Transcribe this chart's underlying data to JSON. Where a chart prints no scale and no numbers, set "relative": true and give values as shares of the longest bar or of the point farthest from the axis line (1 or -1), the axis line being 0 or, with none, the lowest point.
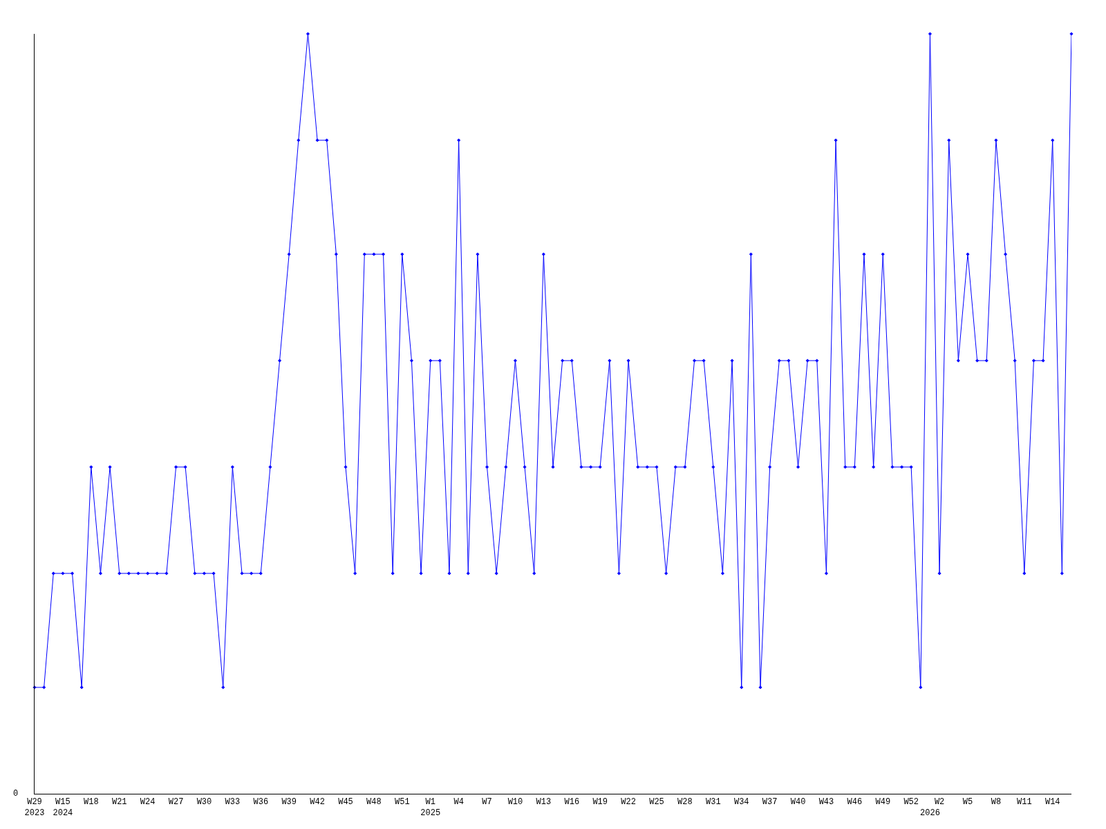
{
  "chart_data": {
    "type": "line",
    "relative": true,
    "marker": "diamond",
    "categories": [
      "W29\n2023",
      null,
      null,
      "W15\n2024",
      null,
      null,
      "W18",
      null,
      null,
      "W21",
      null,
      null,
      "W24",
      null,
      null,
      "W27",
      null,
      null,
      "W30",
      null,
      null,
      "W33",
      null,
      null,
      "W36",
      null,
      null,
      "W39",
      null,
      null,
      "W42",
      null,
      null,
      "W45",
      null,
      null,
      "W48",
      null,
      null,
      "W51",
      null,
      null,
      "W1\n2025",
      null,
      null,
      "W4",
      null,
      null,
      "W7",
      null,
      null,
      "W10",
      null,
      null,
      "W13",
      null,
      null,
      "W16",
      null,
      null,
      "W19",
      null,
      null,
      "W22",
      null,
      null,
      "W25",
      null,
      null,
      "W28",
      null,
      null,
      "W31",
      null,
      null,
      "W34",
      null,
      null,
      "W37",
      null,
      null,
      "W40",
      null,
      null,
      "W43",
      null,
      null,
      "W46",
      null,
      null,
      "W49",
      null,
      null,
      "W52",
      null,
      "\n2026",
      "W2",
      null,
      null,
      "W5",
      null,
      null,
      "W8",
      null,
      null,
      "W11",
      null,
      null,
      "W14",
      null,
      null
    ],
    "series": [
      {
        "color": "#0000ff",
        "values": [
          0.14,
          0.14,
          0.29,
          0.29,
          0.29,
          0.14,
          0.43,
          0.29,
          0.43,
          0.29,
          0.29,
          0.29,
          0.29,
          0.29,
          0.29,
          0.43,
          0.43,
          0.29,
          0.29,
          0.29,
          0.14,
          0.43,
          0.29,
          0.29,
          0.29,
          0.43,
          0.57,
          0.71,
          0.86,
          1,
          0.86,
          0.86,
          0.71,
          0.43,
          0.29,
          0.71,
          0.71,
          0.71,
          0.29,
          0.71,
          0.57,
          0.29,
          0.57,
          0.57,
          0.29,
          0.86,
          0.29,
          0.71,
          0.43,
          0.29,
          0.43,
          0.57,
          0.43,
          0.29,
          0.71,
          0.43,
          0.57,
          0.57,
          0.43,
          0.43,
          0.43,
          0.57,
          0.29,
          0.57,
          0.43,
          0.43,
          0.43,
          0.29,
          0.43,
          0.43,
          0.57,
          0.57,
          0.43,
          0.29,
          0.57,
          0.14,
          0.71,
          0.14,
          0.43,
          0.57,
          0.57,
          0.43,
          0.57,
          0.57,
          0.29,
          0.86,
          0.43,
          0.43,
          0.71,
          0.43,
          0.71,
          0.43,
          0.43,
          0.43,
          0.14,
          1,
          0.29,
          0.86,
          0.57,
          0.71,
          0.57,
          0.57,
          0.86,
          0.71,
          0.57,
          0.29,
          0.57,
          0.57,
          0.86,
          0.29,
          1
        ]
      }
    ],
    "annotations": [
      "0"
    ]
  }
}
